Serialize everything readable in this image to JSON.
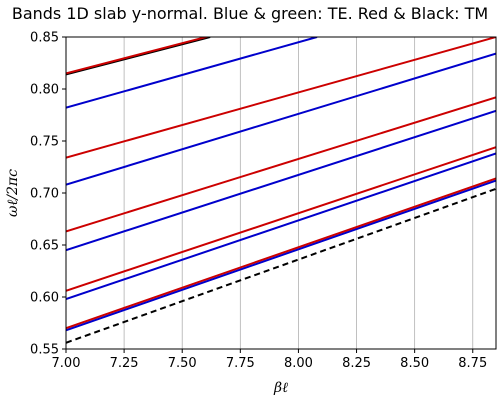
{
  "chart_data": {
    "type": "line",
    "title": "Bands 1D slab y-normal. Blue & green: TE. Red & Black: TM",
    "xlabel": "βℓ",
    "ylabel": "ωℓ/2πc",
    "xlim": [
      7.0,
      8.85
    ],
    "ylim": [
      0.55,
      0.85
    ],
    "xticks": [
      "7.00",
      "7.25",
      "7.50",
      "7.75",
      "8.00",
      "8.25",
      "8.50",
      "8.75"
    ],
    "yticks": [
      "0.55",
      "0.60",
      "0.65",
      "0.70",
      "0.75",
      "0.80",
      "0.85"
    ],
    "grid": "vertical",
    "colors": {
      "blue": "#0000cc",
      "red": "#cc0000",
      "black": "#000000",
      "green": "#008000"
    },
    "series": [
      {
        "color": "black",
        "dashed": true,
        "x": [
          7.0,
          8.85
        ],
        "y": [
          0.556,
          0.704
        ]
      },
      {
        "color": "blue",
        "x": [
          7.0,
          8.85
        ],
        "y": [
          0.568,
          0.712
        ]
      },
      {
        "color": "red",
        "x": [
          7.0,
          8.85
        ],
        "y": [
          0.57,
          0.714
        ]
      },
      {
        "color": "blue",
        "x": [
          7.0,
          8.85
        ],
        "y": [
          0.598,
          0.738
        ]
      },
      {
        "color": "red",
        "x": [
          7.0,
          8.85
        ],
        "y": [
          0.606,
          0.744
        ]
      },
      {
        "color": "blue",
        "x": [
          7.0,
          8.85
        ],
        "y": [
          0.645,
          0.779
        ]
      },
      {
        "color": "red",
        "x": [
          7.0,
          8.85
        ],
        "y": [
          0.663,
          0.792
        ]
      },
      {
        "color": "blue",
        "x": [
          7.0,
          8.85
        ],
        "y": [
          0.708,
          0.834
        ]
      },
      {
        "color": "red",
        "x": [
          7.0,
          8.85
        ],
        "y": [
          0.734,
          0.85
        ]
      },
      {
        "color": "blue",
        "x": [
          7.0,
          8.08
        ],
        "y": [
          0.782,
          0.85
        ]
      },
      {
        "color": "black",
        "x": [
          7.0,
          7.62
        ],
        "y": [
          0.814,
          0.85
        ]
      },
      {
        "color": "red",
        "x": [
          7.0,
          7.62
        ],
        "y": [
          0.815,
          0.851
        ]
      }
    ]
  }
}
